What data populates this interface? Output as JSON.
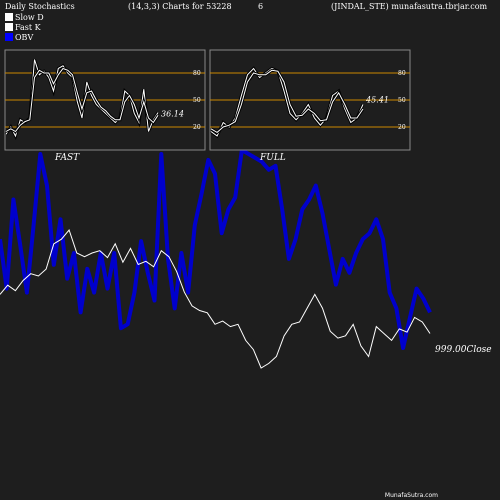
{
  "header": {
    "left": "Daily Stochastics",
    "params": "(14,3,3) Charts for 53228",
    "num": "6",
    "right": "(JINDAL_STE) munafasutra.tbrjar.com"
  },
  "legend": [
    {
      "label": "Slow  D",
      "color": "#ffffff"
    },
    {
      "label": "Fast K",
      "color": "#ffffff"
    },
    {
      "label": "OBV",
      "color": "#0000ff"
    }
  ],
  "footer": "MunafaSutra.com",
  "colors": {
    "background": "#1e1e1e",
    "obv": "#0000cc",
    "price": "#ffffff",
    "level_line": "#cc8800",
    "panel_border": "#888888"
  },
  "chart_data": [
    {
      "type": "line",
      "name": "fast-stochastic-panel",
      "label": "FAST",
      "value_label": "36.14",
      "ylim": [
        0,
        100
      ],
      "yticks": [
        20,
        50,
        80
      ],
      "levels": [
        20,
        50,
        80
      ],
      "series": [
        {
          "name": "Fast K",
          "values": [
            12,
            20,
            10,
            28,
            25,
            30,
            95,
            78,
            82,
            75,
            60,
            85,
            88,
            80,
            75,
            48,
            30,
            70,
            55,
            45,
            40,
            35,
            30,
            25,
            30,
            60,
            55,
            35,
            25,
            62,
            15,
            28,
            36
          ]
        },
        {
          "name": "Slow D",
          "values": [
            15,
            18,
            15,
            22,
            26,
            28,
            75,
            83,
            80,
            80,
            68,
            78,
            85,
            83,
            78,
            58,
            40,
            58,
            60,
            50,
            42,
            38,
            32,
            28,
            28,
            48,
            55,
            45,
            30,
            48,
            30,
            25,
            33
          ]
        }
      ]
    },
    {
      "type": "line",
      "name": "full-stochastic-panel",
      "label": "FULL",
      "value_label": "45.41",
      "ylim": [
        0,
        100
      ],
      "yticks": [
        20,
        50,
        80
      ],
      "levels": [
        20,
        50,
        80
      ],
      "series": [
        {
          "name": "Fast K",
          "values": [
            15,
            10,
            25,
            20,
            30,
            55,
            78,
            85,
            75,
            80,
            85,
            82,
            60,
            35,
            28,
            35,
            45,
            30,
            22,
            30,
            55,
            60,
            40,
            25,
            30,
            45
          ]
        },
        {
          "name": "Slow D",
          "values": [
            18,
            14,
            20,
            22,
            26,
            45,
            70,
            80,
            78,
            78,
            83,
            82,
            70,
            45,
            32,
            33,
            40,
            35,
            27,
            28,
            48,
            58,
            45,
            30,
            30,
            40
          ]
        }
      ]
    },
    {
      "type": "line",
      "name": "obv-and-close",
      "price_label": "999.00",
      "price_label_suffix": "Close",
      "series": [
        {
          "name": "OBV",
          "values": [
            55,
            30,
            75,
            52,
            28,
            62,
            98,
            82,
            42,
            65,
            35,
            48,
            18,
            40,
            28,
            48,
            30,
            48,
            10,
            12,
            28,
            54,
            38,
            24,
            98,
            45,
            20,
            48,
            28,
            62,
            78,
            95,
            88,
            58,
            70,
            76,
            100,
            98,
            96,
            94,
            90,
            92,
            70,
            45,
            55,
            70,
            75,
            82,
            68,
            50,
            32,
            45,
            38,
            48,
            55,
            58,
            65,
            55,
            28,
            20,
            0,
            15,
            30,
            25,
            18
          ]
        },
        {
          "name": "Close",
          "values": [
            210,
            230,
            218,
            240,
            255,
            250,
            265,
            320,
            330,
            350,
            300,
            292,
            300,
            305,
            290,
            320,
            280,
            310,
            275,
            282,
            270,
            305,
            292,
            260,
            215,
            185,
            175,
            170,
            145,
            152,
            140,
            145,
            110,
            90,
            50,
            60,
            75,
            120,
            145,
            150,
            180,
            210,
            180,
            130,
            115,
            120,
            145,
            98,
            75,
            140,
            125,
            110,
            135,
            128,
            160,
            150,
            125
          ]
        }
      ]
    }
  ]
}
